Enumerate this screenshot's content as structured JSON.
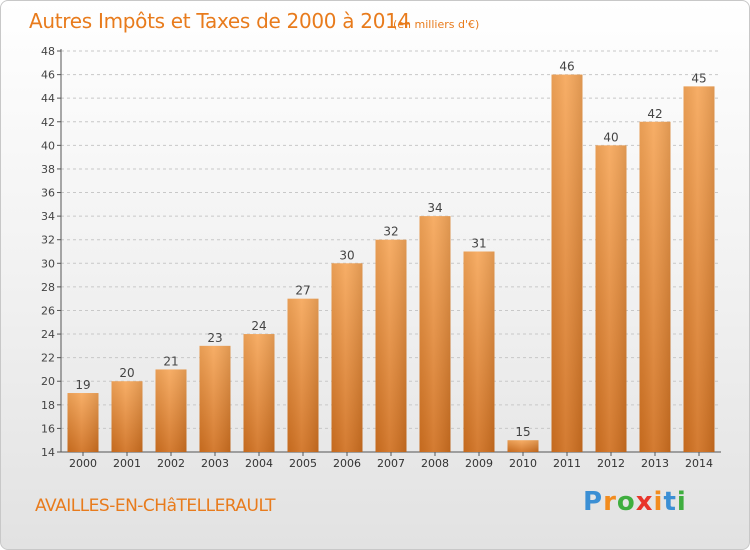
{
  "title": "Autres Impôts et Taxes de 2000 à 2014",
  "subtitle": "(en milliers d'€)",
  "city": "AVAILLES-EN-CHâTELLERAULT",
  "brand": {
    "letters": [
      "P",
      "r",
      "o",
      "x",
      "i",
      "t",
      "i"
    ],
    "colors": [
      "#3b8fd4",
      "#f28c1e",
      "#3fae3f",
      "#e8352b",
      "#f28c1e",
      "#3b8fd4",
      "#3fae3f"
    ]
  },
  "colors": {
    "accent": "#e87b1c",
    "bar_top": "#f6a75a",
    "bar_bottom": "#d07020",
    "grid": "#c8c8c8"
  },
  "chart_data": {
    "type": "bar",
    "categories": [
      "2000",
      "2001",
      "2002",
      "2003",
      "2004",
      "2005",
      "2006",
      "2007",
      "2008",
      "2009",
      "2010",
      "2011",
      "2012",
      "2013",
      "2014"
    ],
    "values": [
      19,
      20,
      21,
      23,
      24,
      27,
      30,
      32,
      34,
      31,
      15,
      46,
      40,
      42,
      45
    ],
    "ylim": [
      14,
      48
    ],
    "yticks": [
      14,
      16,
      18,
      20,
      22,
      24,
      26,
      28,
      30,
      32,
      34,
      36,
      38,
      40,
      42,
      44,
      46,
      48
    ],
    "grid": true,
    "data_labels": true
  }
}
